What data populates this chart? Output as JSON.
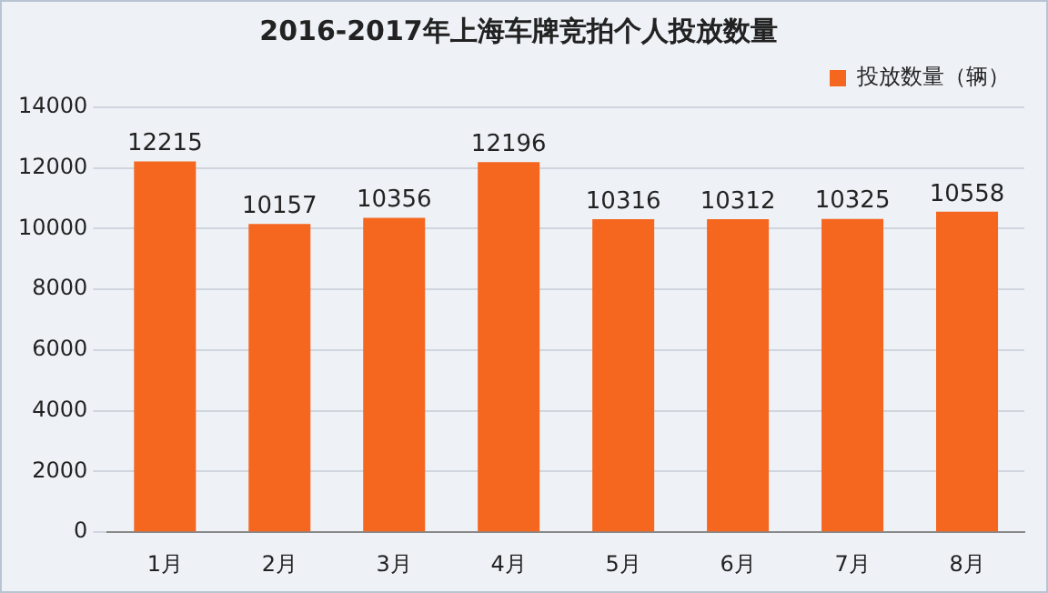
{
  "chart_data": {
    "type": "bar",
    "title": "2016-2017年上海车牌竞拍个人投放数量",
    "categories": [
      "1月",
      "2月",
      "3月",
      "4月",
      "5月",
      "6月",
      "7月",
      "8月"
    ],
    "series": [
      {
        "name": "投放数量（辆）",
        "color": "#f5661f",
        "values": [
          12215,
          10157,
          10356,
          12196,
          10316,
          10312,
          10325,
          10558
        ]
      }
    ],
    "ylim": [
      0,
      14000
    ],
    "yticks": [
      0,
      2000,
      4000,
      6000,
      8000,
      10000,
      12000,
      14000
    ],
    "grid": "y",
    "legend": "top right",
    "data_labels": true
  }
}
